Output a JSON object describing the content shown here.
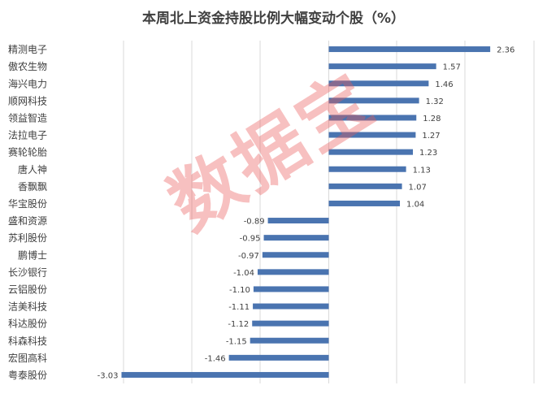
{
  "chart_data": {
    "type": "bar",
    "orientation": "horizontal",
    "title": "本周北上资金持股比例大幅变动个股（%）",
    "categories": [
      "精测电子",
      "傲农生物",
      "海兴电力",
      "顺网科技",
      "领益智造",
      "法拉电子",
      "赛轮轮胎",
      "唐人神",
      "香飘飘",
      "华宝股份",
      "盛和资源",
      "苏利股份",
      "鹏博士",
      "长沙银行",
      "云铝股份",
      "洁美科技",
      "科达股份",
      "科森科技",
      "宏图高科",
      "粤泰股份"
    ],
    "values": [
      2.36,
      1.57,
      1.46,
      1.32,
      1.28,
      1.27,
      1.23,
      1.13,
      1.07,
      1.04,
      -0.89,
      -0.95,
      -0.97,
      -1.04,
      -1.1,
      -1.11,
      -1.12,
      -1.15,
      -1.46,
      -3.03
    ],
    "value_labels": [
      "2.36",
      "1.57",
      "1.46",
      "1.32",
      "1.28",
      "1.27",
      "1.23",
      "1.13",
      "1.07",
      "1.04",
      "-0.89",
      "-0.95",
      "-0.97",
      "-1.04",
      "-1.10",
      "-1.11",
      "-1.12",
      "-1.15",
      "-1.46",
      "-3.03"
    ],
    "xlim": [
      -3.0,
      3.0
    ],
    "grid": true,
    "bar_color": "#4a74b0",
    "legend": false
  },
  "watermark": {
    "text": "数据宝",
    "color": "#eb5a5a"
  }
}
